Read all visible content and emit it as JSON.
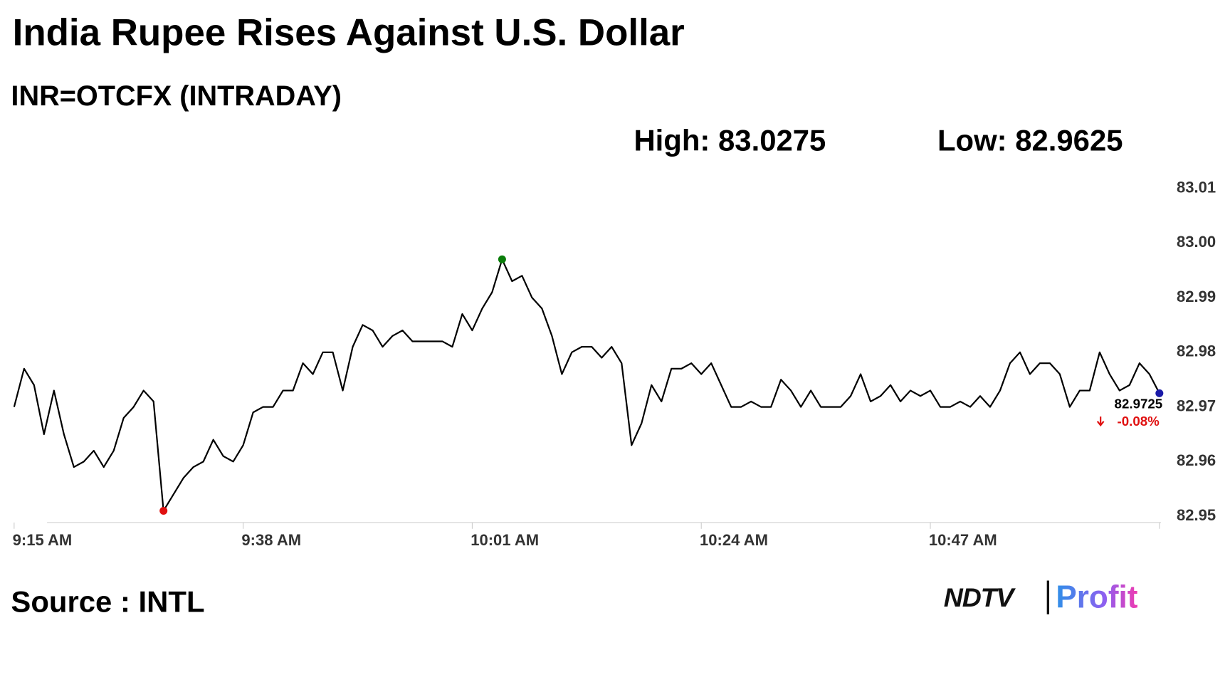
{
  "chart_data": {
    "type": "line",
    "title": "India Rupee Rises Against U.S. Dollar",
    "subtitle": "INR=OTCFX (INTRADAY)",
    "high_label": "High: 83.0275",
    "low_label": "Low: 82.9625",
    "last_label": "82.9725",
    "change_label": "-0.08%",
    "source": "Source : INTL",
    "logo": {
      "brand": "NDTV",
      "product": "Profit"
    },
    "categories": [
      "9:15 AM",
      null,
      null,
      null,
      null,
      null,
      null,
      null,
      null,
      null,
      null,
      null,
      null,
      null,
      null,
      null,
      null,
      null,
      null,
      null,
      null,
      null,
      null,
      "9:38 AM",
      null,
      null,
      null,
      null,
      null,
      null,
      null,
      null,
      null,
      null,
      null,
      null,
      null,
      null,
      null,
      null,
      null,
      null,
      null,
      null,
      null,
      null,
      "10:01 AM",
      null,
      null,
      null,
      null,
      null,
      null,
      null,
      null,
      null,
      null,
      null,
      null,
      null,
      null,
      null,
      null,
      null,
      null,
      null,
      null,
      null,
      null,
      "10:24 AM",
      null,
      null,
      null,
      null,
      null,
      null,
      null,
      null,
      null,
      null,
      null,
      null,
      null,
      null,
      null,
      null,
      null,
      null,
      null,
      null,
      null,
      null,
      "10:47 AM",
      null,
      null,
      null,
      null,
      null,
      null,
      null,
      null,
      null,
      null,
      null,
      null,
      null,
      null,
      null,
      null,
      null,
      null,
      null,
      null,
      null,
      null,
      null
    ],
    "values": [
      82.97,
      82.977,
      82.974,
      82.965,
      82.973,
      82.965,
      82.959,
      82.96,
      82.962,
      82.959,
      82.962,
      82.968,
      82.97,
      82.973,
      82.971,
      82.951,
      82.954,
      82.957,
      82.959,
      82.96,
      82.964,
      82.961,
      82.96,
      82.963,
      82.969,
      82.97,
      82.97,
      82.973,
      82.973,
      82.978,
      82.976,
      82.98,
      82.98,
      82.973,
      82.981,
      82.985,
      82.984,
      82.981,
      82.983,
      82.984,
      82.982,
      82.982,
      82.982,
      82.982,
      82.981,
      82.987,
      82.984,
      82.988,
      82.991,
      82.997,
      82.993,
      82.994,
      82.99,
      82.988,
      82.983,
      82.976,
      82.98,
      82.981,
      82.981,
      82.979,
      82.981,
      82.978,
      82.963,
      82.967,
      82.974,
      82.971,
      82.977,
      82.977,
      82.978,
      82.976,
      82.978,
      82.974,
      82.97,
      82.97,
      82.971,
      82.97,
      82.97,
      82.975,
      82.973,
      82.97,
      82.973,
      82.97,
      82.97,
      82.97,
      82.972,
      82.976,
      82.971,
      82.972,
      82.974,
      82.971,
      82.973,
      82.972,
      82.973,
      82.97,
      82.97,
      82.971,
      82.97,
      82.972,
      82.97,
      82.973,
      82.978,
      82.98,
      82.976,
      82.978,
      82.978,
      82.976,
      82.97,
      82.973,
      82.973,
      82.98,
      82.976,
      82.973,
      82.974,
      82.978,
      82.976,
      82.9725
    ],
    "color": "#000000",
    "high_color": "#0a7d0a",
    "low_color": "#e01010",
    "last_color": "#1a1aa8",
    "change_color": "#e01010",
    "ylim": [
      82.95,
      83.01
    ],
    "yticks": [
      82.95,
      82.96,
      82.97,
      82.98,
      82.99,
      {
        "value": 83.0,
        "label": "83.00"
      },
      83.01
    ],
    "y_axis_side": "right",
    "grid": false
  }
}
